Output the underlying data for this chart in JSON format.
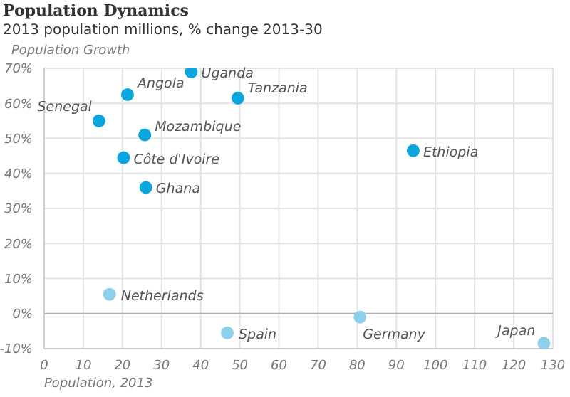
{
  "chart_data": {
    "type": "scatter",
    "title": "Population Dynamics",
    "subtitle": "2013 population millions, % change 2013-30",
    "ylabel": "Population Growth",
    "xlabel": "Population, 2013",
    "series": [
      {
        "color": "#0aa6dd",
        "x": [
          37.6,
          21.3,
          49.5,
          14,
          25.7,
          20.3,
          26,
          94.3
        ],
        "values": [
          69,
          62.5,
          61.5,
          55,
          51,
          44.5,
          36,
          46.5
        ]
      },
      {
        "color": "#8ecfea",
        "x": [
          16.7,
          46.8,
          80.7,
          127.7
        ],
        "values": [
          5.5,
          -5.5,
          -1,
          -8.5
        ]
      }
    ],
    "annotations": [
      {
        "text": "Uganda",
        "x": 37.6,
        "y": 69
      },
      {
        "text": "Angola",
        "x": 21.3,
        "y": 62.5
      },
      {
        "text": "Tanzania",
        "x": 49.5,
        "y": 61.5
      },
      {
        "text": "Senegal",
        "x": 14,
        "y": 55
      },
      {
        "text": "Mozambique",
        "x": 25.7,
        "y": 51
      },
      {
        "text": "Côte d'Ivoire",
        "x": 20.3,
        "y": 44.5
      },
      {
        "text": "Ghana",
        "x": 26,
        "y": 36
      },
      {
        "text": "Ethiopia",
        "x": 94.3,
        "y": 46.5
      },
      {
        "text": "Netherlands",
        "x": 16.7,
        "y": 5.5
      },
      {
        "text": "Spain",
        "x": 46.8,
        "y": -5.5
      },
      {
        "text": "Germany",
        "x": 80.7,
        "y": -1
      },
      {
        "text": "Japan",
        "x": 127.7,
        "y": -8.5
      }
    ],
    "xlim": [
      0,
      130
    ],
    "xticks": [
      0,
      10,
      20,
      30,
      40,
      50,
      60,
      70,
      80,
      90,
      100,
      110,
      120,
      130
    ],
    "ylim": [
      -10,
      70
    ],
    "yticks": [
      {
        "value": -10,
        "label": "-10%"
      },
      {
        "value": 0,
        "label": "0%"
      },
      {
        "value": 10,
        "label": "10%"
      },
      {
        "value": 20,
        "label": "20%"
      },
      {
        "value": 30,
        "label": "30%"
      },
      {
        "value": 40,
        "label": "40%"
      },
      {
        "value": 50,
        "label": "50%"
      },
      {
        "value": 60,
        "label": "60%"
      },
      {
        "value": 70,
        "label": "70%"
      }
    ],
    "ref_lines": [
      {
        "axis": "y",
        "value": 0,
        "color": "#b0b0b0"
      }
    ],
    "grid": true,
    "marker": "circle",
    "legend": false
  }
}
